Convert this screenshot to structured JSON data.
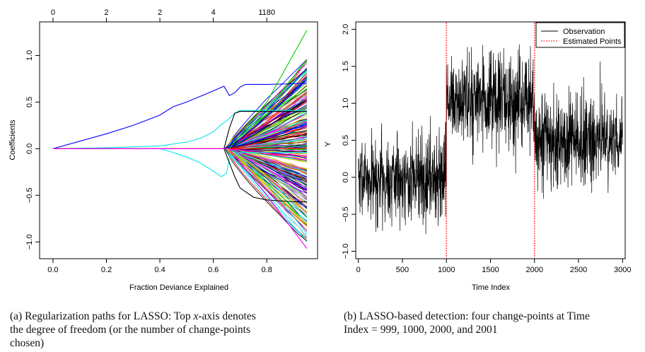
{
  "chart_data": [
    {
      "type": "line",
      "title": "",
      "xlabel": "Fraction Deviance Explained",
      "ylabel": "Coefficients",
      "xlim": [
        -0.05,
        0.99
      ],
      "ylim": [
        -1.18,
        1.36
      ],
      "x_ticks": [
        "0.0",
        "0.2",
        "0.4",
        "0.6",
        "0.8"
      ],
      "x_tick_values": [
        0,
        0.2,
        0.4,
        0.6,
        0.8
      ],
      "y_ticks": [
        "−1.0",
        "−0.5",
        "0.0",
        "0.5",
        "1.0"
      ],
      "y_tick_values": [
        -1.0,
        -0.5,
        0.0,
        0.5,
        1.0
      ],
      "top_axis_ticks": [
        "0",
        "2",
        "2",
        "4",
        "1180"
      ],
      "top_axis_tick_values": [
        0,
        0.2,
        0.4,
        0.6,
        0.8
      ],
      "legend": "none",
      "series": [
        {
          "color": "#0000ff",
          "x": [
            0.0,
            0.1,
            0.2,
            0.3,
            0.4,
            0.45,
            0.5,
            0.55,
            0.6,
            0.64,
            0.66,
            0.68,
            0.7,
            0.72,
            0.8,
            0.95
          ],
          "y": [
            0.0,
            0.08,
            0.16,
            0.25,
            0.36,
            0.45,
            0.5,
            0.56,
            0.62,
            0.67,
            0.57,
            0.6,
            0.66,
            0.69,
            0.69,
            0.7
          ]
        },
        {
          "color": "#00e5ee",
          "x": [
            0.0,
            0.2,
            0.4,
            0.5,
            0.55,
            0.6,
            0.63,
            0.65,
            0.68,
            0.7,
            0.95
          ],
          "y": [
            0.0,
            0.01,
            0.03,
            0.07,
            0.11,
            0.18,
            0.26,
            0.3,
            0.38,
            0.41,
            0.41
          ]
        },
        {
          "color": "#00e5ee",
          "x": [
            0.0,
            0.4,
            0.45,
            0.5,
            0.55,
            0.6,
            0.63,
            0.65,
            0.66,
            0.7,
            0.95
          ],
          "y": [
            0.0,
            0.0,
            -0.04,
            -0.09,
            -0.15,
            -0.24,
            -0.3,
            -0.26,
            -0.1,
            -0.04,
            -0.04
          ]
        },
        {
          "color": "#000000",
          "x": [
            0.0,
            0.64,
            0.66,
            0.68,
            0.7,
            0.75,
            0.95
          ],
          "y": [
            0.0,
            0.0,
            0.22,
            0.38,
            0.4,
            0.4,
            0.4
          ]
        },
        {
          "color": "#000000",
          "x": [
            0.0,
            0.64,
            0.66,
            0.68,
            0.7,
            0.75,
            0.8,
            0.9,
            0.95
          ],
          "y": [
            0.0,
            0.0,
            -0.15,
            -0.3,
            -0.42,
            -0.52,
            -0.55,
            -0.57,
            -0.57
          ]
        },
        {
          "color": "#00cd00",
          "x": [
            0.0,
            0.66,
            0.8,
            0.95
          ],
          "y": [
            0.0,
            0.0,
            0.5,
            1.27
          ]
        },
        {
          "color": "#ff0000",
          "x": [
            0.0,
            0.64,
            0.95
          ],
          "y": [
            0.0,
            0.0,
            0.0
          ]
        },
        {
          "color": "#ff00ff",
          "x": [
            0.0,
            0.66,
            0.8,
            0.95
          ],
          "y": [
            0.0,
            0.0,
            -0.5,
            -1.07
          ]
        }
      ],
      "fan": {
        "start_x": 0.64,
        "end_x": 0.95,
        "end_y_min": -1.0,
        "end_y_max": 0.97,
        "colors": [
          "#000000",
          "#ff0000",
          "#00cd00",
          "#0000ff",
          "#00e5ee",
          "#ff00ff",
          "#cdcd00",
          "#bebebe"
        ]
      }
    },
    {
      "type": "line",
      "title": "",
      "xlabel": "Time Index",
      "ylabel": "Y",
      "xlim": [
        -30,
        3030
      ],
      "ylim": [
        -1.1,
        2.1
      ],
      "x_ticks": [
        "0",
        "500",
        "1000",
        "1500",
        "2000",
        "2500",
        "3000"
      ],
      "x_tick_values": [
        0,
        500,
        1000,
        1500,
        2000,
        2500,
        3000
      ],
      "y_ticks": [
        "−1.0",
        "−0.5",
        "0.0",
        "0.5",
        "1.0",
        "1.5",
        "2.0"
      ],
      "y_tick_values": [
        -1.0,
        -0.5,
        0.0,
        0.5,
        1.0,
        1.5,
        2.0
      ],
      "legend": "top-right",
      "series": [
        {
          "name": "Observation",
          "color": "#000000",
          "x_range": [
            0,
            3000
          ],
          "segments": [
            {
              "from": 0,
              "to": 999,
              "mean": 0.0
            },
            {
              "from": 1000,
              "to": 1999,
              "mean": 1.0
            },
            {
              "from": 2000,
              "to": 3000,
              "mean": 0.5
            }
          ],
          "y_range": [
            -0.96,
            2.02
          ]
        },
        {
          "name": "Estimated Points",
          "color": "#ff0000",
          "x": [
            999,
            1000,
            2000,
            2001
          ]
        }
      ]
    }
  ],
  "captions": {
    "a": {
      "label": "(a)",
      "line1_a": "Regularization paths for LASSO: Top ",
      "line1_var": "x",
      "line1_b": "-axis denotes",
      "line2": "the degree of freedom (or the number of change-points",
      "line3": "chosen)"
    },
    "b": {
      "label": "(b)",
      "line1": "LASSO-based detection: four change-points at Time",
      "line2": "Index = 999, 1000, 2000, and 2001"
    }
  }
}
